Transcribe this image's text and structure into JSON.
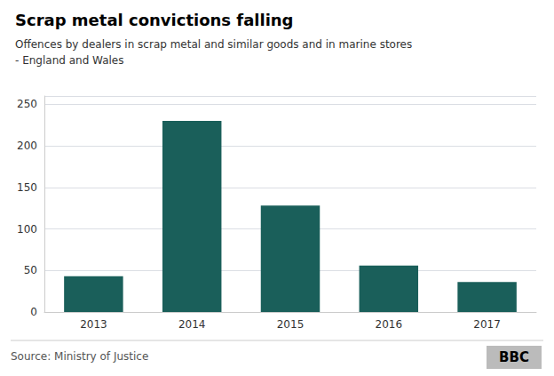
{
  "chart_data": {
    "type": "bar",
    "title": "Scrap metal convictions falling",
    "subtitle": "Offences by dealers in scrap metal and similar goods and in marine stores\n- England and Wales",
    "annotations": [
      "Source: Ministry of Justice",
      "BBC"
    ],
    "categories": [
      "2013",
      "2014",
      "2015",
      "2016",
      "2017"
    ],
    "values": [
      43,
      230,
      128,
      56,
      36
    ],
    "color": "#1a5f5a",
    "ylim": [
      0,
      260
    ],
    "yticks": [
      0,
      50,
      100,
      150,
      200,
      250
    ],
    "grid": true
  }
}
